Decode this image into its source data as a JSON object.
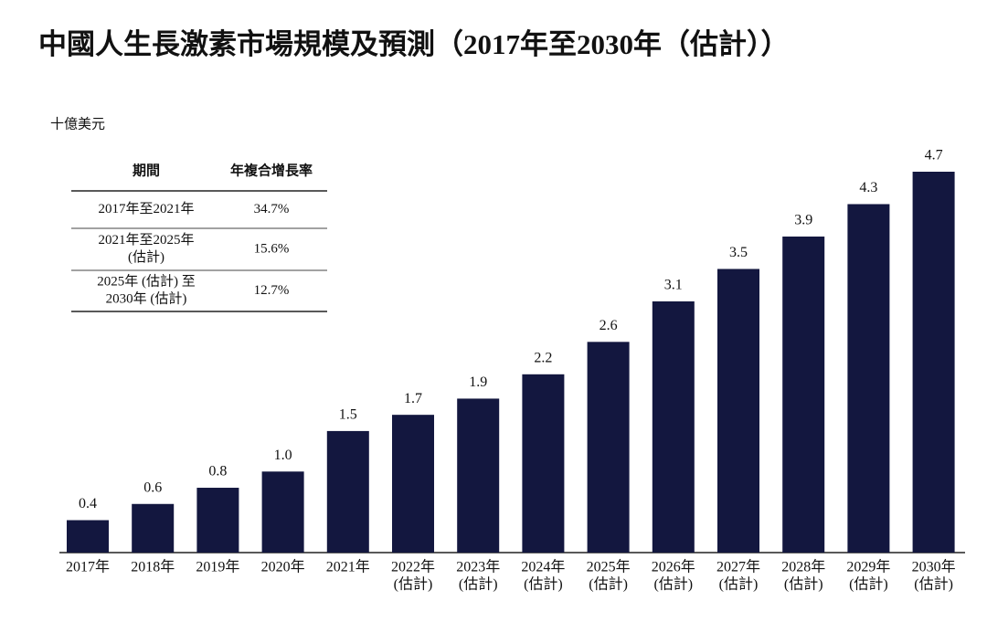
{
  "chart_data": {
    "type": "bar",
    "title": "中國人生長激素市場規模及預測（2017年至2030年（估計））",
    "unit": "十億美元",
    "categories": [
      "2017年",
      "2018年",
      "2019年",
      "2020年",
      "2021年",
      "2022年",
      "2023年",
      "2024年",
      "2025年",
      "2026年",
      "2027年",
      "2028年",
      "2029年",
      "2030年"
    ],
    "category_notes": [
      null,
      null,
      null,
      null,
      null,
      "(估計)",
      "(估計)",
      "(估計)",
      "(估計)",
      "(估計)",
      "(估計)",
      "(估計)",
      "(估計)",
      "(估計)"
    ],
    "values": [
      0.4,
      0.6,
      0.8,
      1.0,
      1.5,
      1.7,
      1.9,
      2.2,
      2.6,
      3.1,
      3.5,
      3.9,
      4.3,
      4.7
    ],
    "value_labels": [
      "0.4",
      "0.6",
      "0.8",
      "1.0",
      "1.5",
      "1.7",
      "1.9",
      "2.2",
      "2.6",
      "3.1",
      "3.5",
      "3.9",
      "4.3",
      "4.7"
    ],
    "color": "#13173f",
    "table": {
      "headers": [
        "期間",
        "年複合增長率"
      ],
      "rows": [
        {
          "period": [
            "2017年至2021年"
          ],
          "cagr": "34.7%"
        },
        {
          "period": [
            "2021年至2025年",
            "(估計)"
          ],
          "cagr": "15.6%"
        },
        {
          "period": [
            "2025年 (估計) 至",
            "2030年 (估計)"
          ],
          "cagr": "12.7%"
        }
      ]
    }
  }
}
